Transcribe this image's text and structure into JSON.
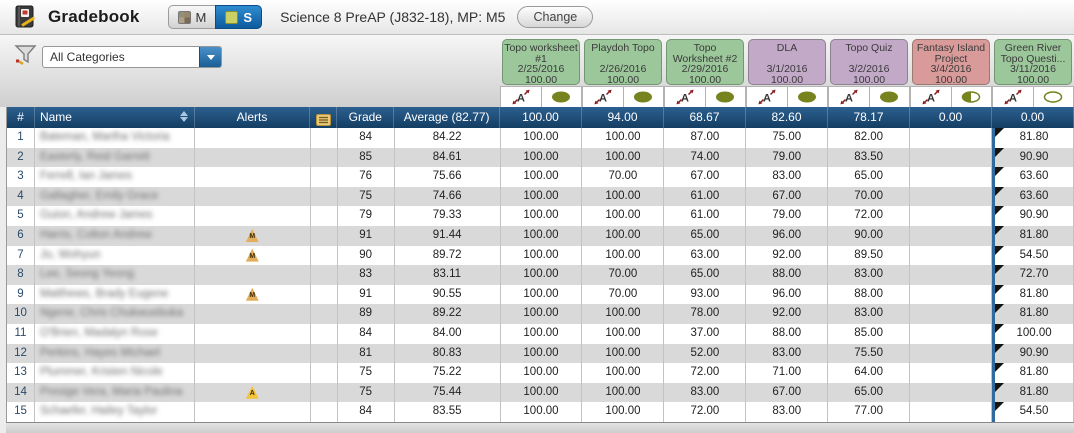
{
  "header": {
    "app_title": "Gradebook",
    "toggle": {
      "m_label": "M",
      "s_label": "S"
    },
    "course_title": "Science 8 PreAP (J832-18), MP: M5",
    "change_button": "Change"
  },
  "toolbar": {
    "category_filter": {
      "value": "All Categories"
    }
  },
  "assignments": [
    {
      "name": "Topo worksheet #1",
      "date": "2/25/2016",
      "points": "100.00",
      "color": "green",
      "status": "full",
      "average": "100.00"
    },
    {
      "name": "Playdoh Topo",
      "date": "2/26/2016",
      "points": "100.00",
      "color": "green",
      "status": "full",
      "average": "94.00"
    },
    {
      "name": "Topo Worksheet #2",
      "date": "2/29/2016",
      "points": "100.00",
      "color": "green",
      "status": "full",
      "average": "68.67"
    },
    {
      "name": "DLA",
      "date": "3/1/2016",
      "points": "100.00",
      "color": "purple",
      "status": "full",
      "average": "82.60"
    },
    {
      "name": "Topo Quiz",
      "date": "3/2/2016",
      "points": "100.00",
      "color": "purple",
      "status": "full",
      "average": "78.17"
    },
    {
      "name": "Fantasy Island Project",
      "date": "3/4/2016",
      "points": "100.00",
      "color": "red",
      "status": "half",
      "average": "0.00"
    },
    {
      "name": "Green River Topo Questi...",
      "date": "3/11/2016",
      "points": "100.00",
      "color": "green",
      "status": "empty",
      "average": "0.00"
    }
  ],
  "table": {
    "columns": {
      "num": "#",
      "name": "Name",
      "alerts": "Alerts",
      "grade": "Grade",
      "average": "Average (82.77)"
    },
    "rows": [
      {
        "num": "1",
        "name": "Bateman, Martha Victoria",
        "alert": "",
        "grade": "84",
        "average": "84.22",
        "scores": [
          "100.00",
          "100.00",
          "87.00",
          "75.00",
          "82.00",
          "",
          "81.80"
        ]
      },
      {
        "num": "2",
        "name": "Easterly, Reid Garrett",
        "alert": "",
        "grade": "85",
        "average": "84.61",
        "scores": [
          "100.00",
          "100.00",
          "74.00",
          "79.00",
          "83.50",
          "",
          "90.90"
        ]
      },
      {
        "num": "3",
        "name": "Ferrell, Ian James",
        "alert": "",
        "grade": "76",
        "average": "75.66",
        "scores": [
          "100.00",
          "70.00",
          "67.00",
          "83.00",
          "65.00",
          "",
          "63.60"
        ]
      },
      {
        "num": "4",
        "name": "Gallagher, Emily Grace",
        "alert": "",
        "grade": "75",
        "average": "74.66",
        "scores": [
          "100.00",
          "100.00",
          "61.00",
          "67.00",
          "70.00",
          "",
          "63.60"
        ]
      },
      {
        "num": "5",
        "name": "Guion, Andrew James",
        "alert": "",
        "grade": "79",
        "average": "79.33",
        "scores": [
          "100.00",
          "100.00",
          "61.00",
          "79.00",
          "72.00",
          "",
          "90.90"
        ]
      },
      {
        "num": "6",
        "name": "Harris, Colton Andrew",
        "alert": "M",
        "grade": "91",
        "average": "91.44",
        "scores": [
          "100.00",
          "100.00",
          "65.00",
          "96.00",
          "90.00",
          "",
          "81.80"
        ]
      },
      {
        "num": "7",
        "name": "Jo, Wohyun",
        "alert": "M",
        "grade": "90",
        "average": "89.72",
        "scores": [
          "100.00",
          "100.00",
          "63.00",
          "92.00",
          "89.50",
          "",
          "54.50"
        ]
      },
      {
        "num": "8",
        "name": "Lee, Seong Yeong",
        "alert": "",
        "grade": "83",
        "average": "83.11",
        "scores": [
          "100.00",
          "70.00",
          "65.00",
          "88.00",
          "83.00",
          "",
          "72.70"
        ]
      },
      {
        "num": "9",
        "name": "Matthews, Brady Eugene",
        "alert": "M",
        "grade": "91",
        "average": "90.55",
        "scores": [
          "100.00",
          "70.00",
          "93.00",
          "96.00",
          "88.00",
          "",
          "81.80"
        ]
      },
      {
        "num": "10",
        "name": "Ngene, Chris Chukwuebuka",
        "alert": "",
        "grade": "89",
        "average": "89.22",
        "scores": [
          "100.00",
          "100.00",
          "78.00",
          "92.00",
          "83.00",
          "",
          "81.80"
        ]
      },
      {
        "num": "11",
        "name": "O'Brien, Madalyn Rose",
        "alert": "",
        "grade": "84",
        "average": "84.00",
        "scores": [
          "100.00",
          "100.00",
          "37.00",
          "88.00",
          "85.00",
          "",
          "100.00"
        ]
      },
      {
        "num": "12",
        "name": "Perkins, Hayes Michael",
        "alert": "",
        "grade": "81",
        "average": "80.83",
        "scores": [
          "100.00",
          "100.00",
          "52.00",
          "83.00",
          "75.50",
          "",
          "90.90"
        ]
      },
      {
        "num": "13",
        "name": "Plummer, Kristen Nicole",
        "alert": "",
        "grade": "75",
        "average": "75.22",
        "scores": [
          "100.00",
          "100.00",
          "72.00",
          "71.00",
          "64.00",
          "",
          "81.80"
        ]
      },
      {
        "num": "14",
        "name": "Presige Vera, Maria Paulina",
        "alert": "A",
        "grade": "75",
        "average": "75.44",
        "scores": [
          "100.00",
          "100.00",
          "83.00",
          "67.00",
          "65.00",
          "",
          "81.80"
        ]
      },
      {
        "num": "15",
        "name": "Schaefer, Hailey Taylor",
        "alert": "",
        "grade": "84",
        "average": "83.55",
        "scores": [
          "100.00",
          "100.00",
          "72.00",
          "83.00",
          "77.00",
          "",
          "54.50"
        ]
      }
    ]
  },
  "colors": {
    "chip": {
      "green": "#9cc79b",
      "purple": "#c3a9c8",
      "red": "#d99a9a"
    },
    "status_olive": "#76831f",
    "header_navy": "#19466e",
    "selected_column_border": "#2f6b9e",
    "row_alt_gray": "#d9d9d9",
    "toggle_active_blue": "#1374bd"
  },
  "icons": {
    "app": "gradebook-book-icon",
    "filter": "funnel-icon",
    "dropdown": "chevron-down-icon",
    "sort": "sort-arrows-icon",
    "notes_column": "note-card-icon",
    "grade_entry": "text-size-icon",
    "publish_status": "status-ellipse-icon",
    "flag": "corner-flag-icon"
  }
}
